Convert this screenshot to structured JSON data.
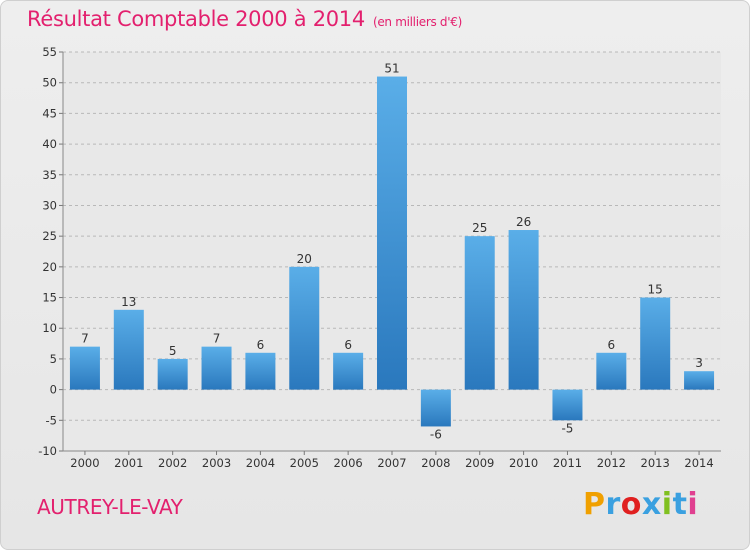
{
  "chart_data": {
    "type": "bar",
    "title": "Résultat Comptable 2000 à 2014",
    "subtitle": "(en milliers d'€)",
    "categories": [
      "2000",
      "2001",
      "2002",
      "2003",
      "2004",
      "2005",
      "2006",
      "2007",
      "2008",
      "2009",
      "2010",
      "2011",
      "2012",
      "2013",
      "2014"
    ],
    "values": [
      7,
      13,
      5,
      7,
      6,
      20,
      6,
      51,
      -6,
      25,
      26,
      -5,
      6,
      15,
      3
    ],
    "ylim": [
      -10,
      55
    ],
    "yticks": [
      -10,
      -5,
      0,
      5,
      10,
      15,
      20,
      25,
      30,
      35,
      40,
      45,
      50,
      55
    ],
    "grid": true,
    "bar_color": "#3d8fd0",
    "xlabel": "",
    "ylabel": ""
  },
  "footer": {
    "commune": "AUTREY-LE-VAY",
    "logo_letters": [
      "P",
      "r",
      "o",
      "x",
      "i",
      "t",
      "i"
    ],
    "logo_colors": [
      "#f0a000",
      "#3aa0e0",
      "#e02020",
      "#3aa0e0",
      "#80c020",
      "#3aa0e0",
      "#e04090"
    ]
  },
  "colors": {
    "accent": "#e3206e"
  }
}
